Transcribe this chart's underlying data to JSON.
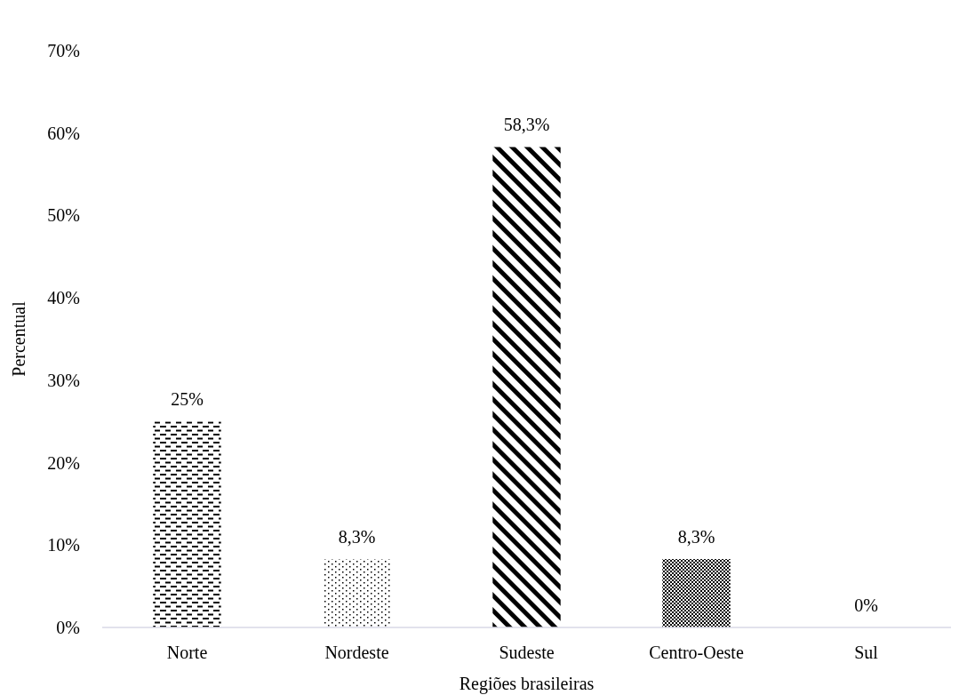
{
  "chart_data": {
    "type": "bar",
    "xlabel": "Regiões brasileiras",
    "ylabel": "Percentual",
    "categories": [
      "Norte",
      "Nordeste",
      "Sudeste",
      "Centro-Oeste",
      "Sul"
    ],
    "values": [
      25,
      8.3,
      58.3,
      8.3,
      0
    ],
    "value_labels": [
      "25%",
      "8,3%",
      "58,3%",
      "8,3%",
      "0%"
    ],
    "color": "#000000",
    "ylim": [
      0,
      70
    ],
    "yticks": [
      {
        "value": 0,
        "label": "0%"
      },
      {
        "value": 10,
        "label": "10%"
      },
      {
        "value": 20,
        "label": "20%"
      },
      {
        "value": 30,
        "label": "30%"
      },
      {
        "value": 40,
        "label": "40%"
      },
      {
        "value": 50,
        "label": "50%"
      },
      {
        "value": 60,
        "label": "60%"
      },
      {
        "value": 70,
        "label": "70%"
      }
    ],
    "grid": false
  }
}
